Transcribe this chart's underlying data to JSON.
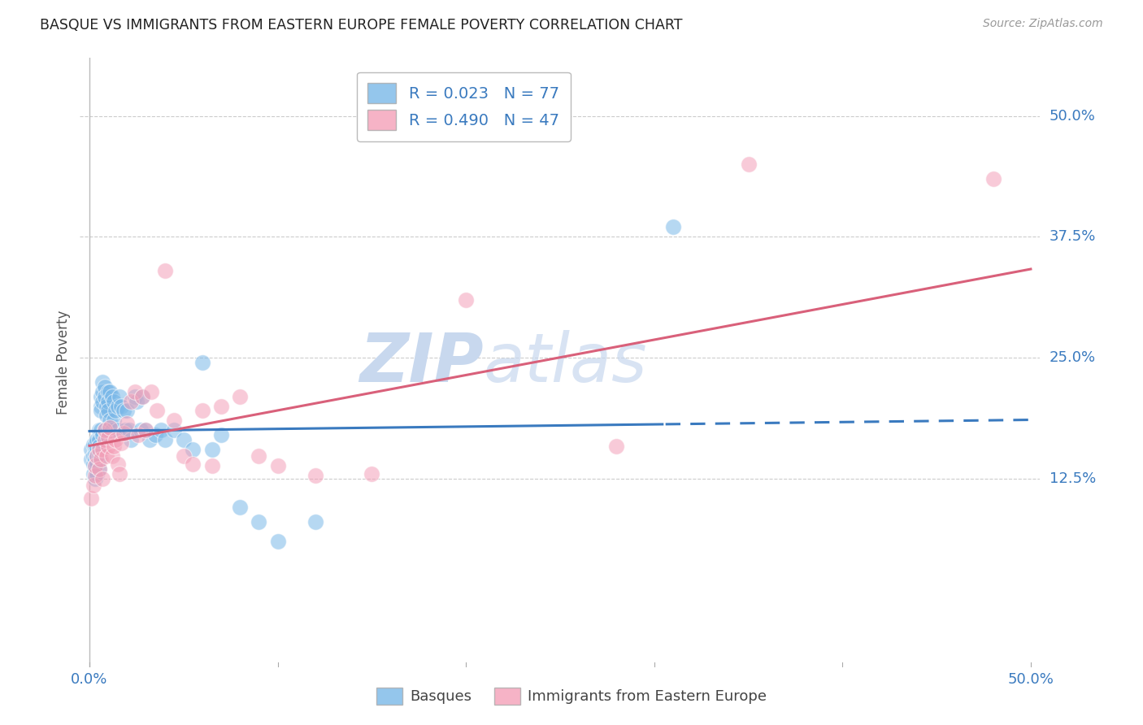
{
  "title": "BASQUE VS IMMIGRANTS FROM EASTERN EUROPE FEMALE POVERTY CORRELATION CHART",
  "source": "Source: ZipAtlas.com",
  "ylabel": "Female Poverty",
  "R1": 0.023,
  "N1": 77,
  "R2": 0.49,
  "N2": 47,
  "color_blue": "#7ab8e8",
  "color_pink": "#f4a0b8",
  "color_blue_line": "#3a7abf",
  "color_pink_line": "#d9607a",
  "color_blue_text": "#3a7abf",
  "background_color": "#ffffff",
  "grid_color": "#cccccc",
  "legend_label1": "Basques",
  "legend_label2": "Immigrants from Eastern Europe",
  "xmin": -0.005,
  "xmax": 0.505,
  "ymin": -0.07,
  "ymax": 0.56,
  "ytick_values": [
    0.125,
    0.25,
    0.375,
    0.5
  ],
  "ytick_labels": [
    "12.5%",
    "25.0%",
    "37.5%",
    "50.0%"
  ],
  "basques_x": [
    0.001,
    0.001,
    0.002,
    0.002,
    0.002,
    0.002,
    0.003,
    0.003,
    0.003,
    0.003,
    0.003,
    0.003,
    0.004,
    0.004,
    0.004,
    0.004,
    0.004,
    0.005,
    0.005,
    0.005,
    0.005,
    0.005,
    0.005,
    0.006,
    0.006,
    0.006,
    0.006,
    0.007,
    0.007,
    0.007,
    0.007,
    0.008,
    0.008,
    0.008,
    0.009,
    0.009,
    0.009,
    0.01,
    0.01,
    0.01,
    0.01,
    0.011,
    0.011,
    0.012,
    0.012,
    0.013,
    0.013,
    0.014,
    0.015,
    0.015,
    0.016,
    0.017,
    0.018,
    0.019,
    0.02,
    0.021,
    0.022,
    0.024,
    0.025,
    0.027,
    0.028,
    0.03,
    0.032,
    0.035,
    0.038,
    0.04,
    0.045,
    0.05,
    0.055,
    0.06,
    0.065,
    0.07,
    0.08,
    0.09,
    0.1,
    0.12,
    0.31
  ],
  "basques_y": [
    0.155,
    0.145,
    0.14,
    0.13,
    0.16,
    0.148,
    0.155,
    0.15,
    0.145,
    0.16,
    0.138,
    0.125,
    0.165,
    0.155,
    0.148,
    0.14,
    0.13,
    0.175,
    0.165,
    0.158,
    0.15,
    0.145,
    0.135,
    0.21,
    0.2,
    0.195,
    0.175,
    0.225,
    0.215,
    0.205,
    0.17,
    0.22,
    0.21,
    0.175,
    0.2,
    0.19,
    0.168,
    0.215,
    0.205,
    0.195,
    0.175,
    0.215,
    0.185,
    0.21,
    0.175,
    0.205,
    0.185,
    0.195,
    0.2,
    0.175,
    0.21,
    0.2,
    0.195,
    0.175,
    0.195,
    0.175,
    0.165,
    0.21,
    0.205,
    0.175,
    0.21,
    0.175,
    0.165,
    0.17,
    0.175,
    0.165,
    0.175,
    0.165,
    0.155,
    0.245,
    0.155,
    0.17,
    0.095,
    0.08,
    0.06,
    0.08,
    0.385
  ],
  "immigrants_x": [
    0.001,
    0.002,
    0.003,
    0.003,
    0.004,
    0.005,
    0.005,
    0.006,
    0.007,
    0.007,
    0.008,
    0.008,
    0.009,
    0.01,
    0.01,
    0.011,
    0.012,
    0.013,
    0.014,
    0.015,
    0.016,
    0.017,
    0.018,
    0.02,
    0.022,
    0.024,
    0.026,
    0.028,
    0.03,
    0.033,
    0.036,
    0.04,
    0.045,
    0.05,
    0.055,
    0.06,
    0.065,
    0.07,
    0.08,
    0.09,
    0.1,
    0.12,
    0.15,
    0.2,
    0.28,
    0.35,
    0.48
  ],
  "immigrants_y": [
    0.105,
    0.118,
    0.128,
    0.138,
    0.148,
    0.135,
    0.155,
    0.145,
    0.125,
    0.155,
    0.165,
    0.175,
    0.148,
    0.158,
    0.168,
    0.178,
    0.148,
    0.158,
    0.165,
    0.14,
    0.13,
    0.162,
    0.172,
    0.182,
    0.205,
    0.215,
    0.17,
    0.21,
    0.175,
    0.215,
    0.195,
    0.34,
    0.185,
    0.148,
    0.14,
    0.195,
    0.138,
    0.2,
    0.21,
    0.148,
    0.138,
    0.128,
    0.13,
    0.31,
    0.158,
    0.45,
    0.435
  ]
}
